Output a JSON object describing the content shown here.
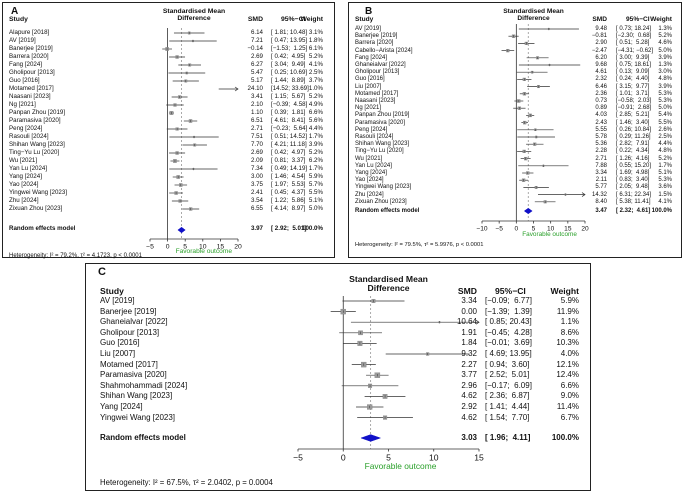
{
  "colors": {
    "favorable": "#2aa02a",
    "diamond": "#1010c8",
    "ref": "#888888",
    "line": "#333333"
  },
  "panels": [
    {
      "id": "A",
      "label": "A",
      "headers": {
        "study": "Study",
        "smd_title": "Standardised Mean\nDifference",
        "smd": "SMD",
        "ci": "95%−CI",
        "weight": "Weight"
      },
      "favorable": "Favorable outcome",
      "heterogeneity": "Heterogeneity: I² = 79.2%, τ² = 4.1723, p < 0.0001",
      "random_label": "Random effects model",
      "random": {
        "smd": "3.97",
        "ci": "[ 2.92;  5.01]",
        "weight": "100.0%"
      },
      "axis": {
        "min": -5,
        "max": 20,
        "ticks": [
          -5,
          0,
          5,
          10,
          15,
          20
        ]
      },
      "studies": [
        {
          "name": "Alapure [2018]",
          "smd": "6.14",
          "ci": "[ 1.81; 10.48]",
          "weight": "3.1%",
          "est": 6.14,
          "lo": 1.81,
          "hi": 10.48
        },
        {
          "name": "AV [2019]",
          "smd": "7.21",
          "ci": "[ 0.47; 13.95]",
          "weight": "1.8%",
          "est": 7.21,
          "lo": 0.47,
          "hi": 13.95
        },
        {
          "name": "Banerjee [2019]",
          "smd": "−0.14",
          "ci": "[−1.53;  1.25]",
          "weight": "6.1%",
          "est": -0.14,
          "lo": -1.53,
          "hi": 1.25
        },
        {
          "name": "Barrera [2020]",
          "smd": "2.69",
          "ci": "[ 0.42;  4.95]",
          "weight": "5.2%",
          "est": 2.69,
          "lo": 0.42,
          "hi": 4.95
        },
        {
          "name": "Fang [2024]",
          "smd": "6.27",
          "ci": "[ 3.04;  9.49]",
          "weight": "4.1%",
          "est": 6.27,
          "lo": 3.04,
          "hi": 9.49
        },
        {
          "name": "Gholipour [2013]",
          "smd": "5.47",
          "ci": "[ 0.25; 10.69]",
          "weight": "2.5%",
          "est": 5.47,
          "lo": 0.25,
          "hi": 10.69
        },
        {
          "name": "Guo [2016]",
          "smd": "5.17",
          "ci": "[ 1.44;  8.89]",
          "weight": "3.7%",
          "est": 5.17,
          "lo": 1.44,
          "hi": 8.89
        },
        {
          "name": "Motamed [2017]",
          "smd": "24.10",
          "ci": "[14.52; 33.69]",
          "weight": "1.0%",
          "est": 24.1,
          "lo": 14.52,
          "hi": 33.69
        },
        {
          "name": "Naasani [2023]",
          "smd": "3.41",
          "ci": "[ 1.15;  5.67]",
          "weight": "5.2%",
          "est": 3.41,
          "lo": 1.15,
          "hi": 5.67
        },
        {
          "name": "Ng [2021]",
          "smd": "2.10",
          "ci": "[−0.39;  4.58]",
          "weight": "4.9%",
          "est": 2.1,
          "lo": -0.39,
          "hi": 4.58
        },
        {
          "name": "Panpan Zhou [2019]",
          "smd": "1.10",
          "ci": "[ 0.39;  1.81]",
          "weight": "6.6%",
          "est": 1.1,
          "lo": 0.39,
          "hi": 1.81
        },
        {
          "name": "Paramasiva [2020]",
          "smd": "6.51",
          "ci": "[ 4.61;  8.41]",
          "weight": "5.6%",
          "est": 6.51,
          "lo": 4.61,
          "hi": 8.41
        },
        {
          "name": "Peng [2024]",
          "smd": "2.71",
          "ci": "[−0.23;  5.64]",
          "weight": "4.4%",
          "est": 2.71,
          "lo": -0.23,
          "hi": 5.64
        },
        {
          "name": "Rasouli [2024]",
          "smd": "7.51",
          "ci": "[ 0.51; 14.52]",
          "weight": "1.7%",
          "est": 7.51,
          "lo": 0.51,
          "hi": 14.52
        },
        {
          "name": "Shihan Wang [2023]",
          "smd": "7.70",
          "ci": "[ 4.21; 11.18]",
          "weight": "3.9%",
          "est": 7.7,
          "lo": 4.21,
          "hi": 11.18
        },
        {
          "name": "Ting−Yu Lu [2020]",
          "smd": "2.69",
          "ci": "[ 0.42;  4.97]",
          "weight": "5.2%",
          "est": 2.69,
          "lo": 0.42,
          "hi": 4.97
        },
        {
          "name": "Wu [2021]",
          "smd": "2.09",
          "ci": "[ 0.81;  3.37]",
          "weight": "6.2%",
          "est": 2.09,
          "lo": 0.81,
          "hi": 3.37
        },
        {
          "name": "Yan Lu [2024]",
          "smd": "7.34",
          "ci": "[ 0.49; 14.19]",
          "weight": "1.7%",
          "est": 7.34,
          "lo": 0.49,
          "hi": 14.19
        },
        {
          "name": "Yang [2024]",
          "smd": "3.00",
          "ci": "[ 1.46;  4.54]",
          "weight": "5.9%",
          "est": 3.0,
          "lo": 1.46,
          "hi": 4.54
        },
        {
          "name": "Yao [2024]",
          "smd": "3.75",
          "ci": "[ 1.97;  5.53]",
          "weight": "5.7%",
          "est": 3.75,
          "lo": 1.97,
          "hi": 5.53
        },
        {
          "name": "Yingwei Wang [2023]",
          "smd": "2.41",
          "ci": "[ 0.45;  4.37]",
          "weight": "5.5%",
          "est": 2.41,
          "lo": 0.45,
          "hi": 4.37
        },
        {
          "name": "Zhu [2024]",
          "smd": "3.54",
          "ci": "[ 1.22;  5.86]",
          "weight": "5.1%",
          "est": 3.54,
          "lo": 1.22,
          "hi": 5.86
        },
        {
          "name": "Zixuan Zhou [2023]",
          "smd": "6.55",
          "ci": "[ 4.14;  8.97]",
          "weight": "5.0%",
          "est": 6.55,
          "lo": 4.14,
          "hi": 8.97
        }
      ],
      "rand": {
        "est": 3.97,
        "lo": 2.92,
        "hi": 5.01
      }
    },
    {
      "id": "B",
      "label": "B",
      "headers": {
        "study": "Study",
        "smd_title": "Standardised Mean\nDifference",
        "smd": "SMD",
        "ci": "95%−CI",
        "weight": "Weight"
      },
      "favorable": "Favorable outcome",
      "heterogeneity": "Heterogeneity: I² = 79.5%, τ² = 5.9976, p < 0.0001",
      "random_label": "Random effects model",
      "random": {
        "smd": "3.47",
        "ci": "[ 2.32;  4.61]",
        "weight": "100.0%"
      },
      "axis": {
        "min": -10,
        "max": 20,
        "ticks": [
          -10,
          -5,
          0,
          5,
          10,
          15,
          20
        ]
      },
      "studies": [
        {
          "name": "AV [2019]",
          "smd": "9.48",
          "ci": "[ 0.73; 18.24]",
          "weight": "1.3%",
          "est": 9.48,
          "lo": 0.73,
          "hi": 18.24
        },
        {
          "name": "Banerjee [2019]",
          "smd": "−0.81",
          "ci": "[−2.30;  0.68]",
          "weight": "5.2%",
          "est": -0.81,
          "lo": -2.3,
          "hi": 0.68
        },
        {
          "name": "Barrera [2020]",
          "smd": "2.90",
          "ci": "[ 0.51;  5.28]",
          "weight": "4.6%",
          "est": 2.9,
          "lo": 0.51,
          "hi": 5.28
        },
        {
          "name": "Cabello−Arista [2024]",
          "smd": "−2.47",
          "ci": "[−4.31; −0.62]",
          "weight": "5.0%",
          "est": -2.47,
          "lo": -4.31,
          "hi": -0.62
        },
        {
          "name": "Fang [2024]",
          "smd": "6.20",
          "ci": "[ 3.00;  9.39]",
          "weight": "3.9%",
          "est": 6.2,
          "lo": 3.0,
          "hi": 9.39
        },
        {
          "name": "Ghaneialvar [2022]",
          "smd": "9.68",
          "ci": "[ 0.75; 18.61]",
          "weight": "1.3%",
          "est": 9.68,
          "lo": 0.75,
          "hi": 18.61
        },
        {
          "name": "Gholipour [2013]",
          "smd": "4.61",
          "ci": "[ 0.13;  9.09]",
          "weight": "3.0%",
          "est": 4.61,
          "lo": 0.13,
          "hi": 9.09
        },
        {
          "name": "Guo [2016]",
          "smd": "2.32",
          "ci": "[ 0.24;  4.40]",
          "weight": "4.8%",
          "est": 2.32,
          "lo": 0.24,
          "hi": 4.4
        },
        {
          "name": "Liu [2007]",
          "smd": "6.46",
          "ci": "[ 3.15;  9.77]",
          "weight": "3.9%",
          "est": 6.46,
          "lo": 3.15,
          "hi": 9.77
        },
        {
          "name": "Motamed [2017]",
          "smd": "2.36",
          "ci": "[ 1.01;  3.71]",
          "weight": "5.3%",
          "est": 2.36,
          "lo": 1.01,
          "hi": 3.71
        },
        {
          "name": "Naasani [2023]",
          "smd": "0.73",
          "ci": "[−0.58;  2.03]",
          "weight": "5.3%",
          "est": 0.73,
          "lo": -0.58,
          "hi": 2.03
        },
        {
          "name": "Ng [2021]",
          "smd": "0.89",
          "ci": "[−0.91;  2.68]",
          "weight": "5.0%",
          "est": 0.89,
          "lo": -0.91,
          "hi": 2.68
        },
        {
          "name": "Panpan Zhou [2019]",
          "smd": "4.03",
          "ci": "[ 2.85;  5.21]",
          "weight": "5.4%",
          "est": 4.03,
          "lo": 2.85,
          "hi": 5.21
        },
        {
          "name": "Paramasiva [2020]",
          "smd": "2.43",
          "ci": "[ 1.46;  3.40]",
          "weight": "5.5%",
          "est": 2.43,
          "lo": 1.46,
          "hi": 3.4
        },
        {
          "name": "Peng [2024]",
          "smd": "5.55",
          "ci": "[ 0.26; 10.84]",
          "weight": "2.6%",
          "est": 5.55,
          "lo": 0.26,
          "hi": 10.84
        },
        {
          "name": "Rasouli [2024]",
          "smd": "5.78",
          "ci": "[ 0.29; 11.26]",
          "weight": "2.5%",
          "est": 5.78,
          "lo": 0.29,
          "hi": 11.26
        },
        {
          "name": "Shihan Wang [2023]",
          "smd": "5.36",
          "ci": "[ 2.82;  7.91]",
          "weight": "4.4%",
          "est": 5.36,
          "lo": 2.82,
          "hi": 7.91
        },
        {
          "name": "Ting−Yu Lu [2020]",
          "smd": "2.28",
          "ci": "[ 0.22;  4.34]",
          "weight": "4.8%",
          "est": 2.28,
          "lo": 0.22,
          "hi": 4.34
        },
        {
          "name": "Wu [2021]",
          "smd": "2.71",
          "ci": "[ 1.26;  4.16]",
          "weight": "5.2%",
          "est": 2.71,
          "lo": 1.26,
          "hi": 4.16
        },
        {
          "name": "Yan Lu [2024]",
          "smd": "7.88",
          "ci": "[ 0.55; 15.20]",
          "weight": "1.7%",
          "est": 7.88,
          "lo": 0.55,
          "hi": 15.2
        },
        {
          "name": "Yang [2024]",
          "smd": "3.34",
          "ci": "[ 1.69;  4.98]",
          "weight": "5.1%",
          "est": 3.34,
          "lo": 1.69,
          "hi": 4.98
        },
        {
          "name": "Yao [2024]",
          "smd": "2.11",
          "ci": "[ 0.83;  3.40]",
          "weight": "5.3%",
          "est": 2.11,
          "lo": 0.83,
          "hi": 3.4
        },
        {
          "name": "Yingwei Wang [2023]",
          "smd": "5.77",
          "ci": "[ 2.05;  9.48]",
          "weight": "3.6%",
          "est": 5.77,
          "lo": 2.05,
          "hi": 9.48
        },
        {
          "name": "Zhu [2024]",
          "smd": "14.32",
          "ci": "[ 6.31; 22.34]",
          "weight": "1.5%",
          "est": 14.32,
          "lo": 6.31,
          "hi": 22.34
        },
        {
          "name": "Zixuan Zhou [2023]",
          "smd": "8.40",
          "ci": "[ 5.38; 11.41]",
          "weight": "4.1%",
          "est": 8.4,
          "lo": 5.38,
          "hi": 11.41
        }
      ],
      "rand": {
        "est": 3.47,
        "lo": 2.32,
        "hi": 4.61
      }
    },
    {
      "id": "C",
      "label": "C",
      "headers": {
        "study": "Study",
        "smd_title": "Standardised Mean\nDifference",
        "smd": "SMD",
        "ci": "95%−CI",
        "weight": "Weight"
      },
      "favorable": "Favorable outcome",
      "heterogeneity": "Heterogeneity: I² = 67.5%, τ² = 2.0402, p = 0.0004",
      "random_label": "Random effects model",
      "random": {
        "smd": "3.03",
        "ci": "[ 1.96;  4.11]",
        "weight": "100.0%"
      },
      "axis": {
        "min": -5,
        "max": 15,
        "ticks": [
          -5,
          0,
          5,
          10,
          15
        ]
      },
      "studies": [
        {
          "name": "AV [2019]",
          "smd": "3.34",
          "ci": "[−0.09;  6.77]",
          "weight": "5.9%",
          "est": 3.34,
          "lo": -0.09,
          "hi": 6.77
        },
        {
          "name": "Banerjee [2019]",
          "smd": "0.00",
          "ci": "[−1.39;  1.39]",
          "weight": "11.9%",
          "est": 0.0,
          "lo": -1.39,
          "hi": 1.39
        },
        {
          "name": "Ghaneialvar [2022]",
          "smd": "10.64",
          "ci": "[ 0.85; 20.43]",
          "weight": "1.1%",
          "est": 10.64,
          "lo": 0.85,
          "hi": 20.43
        },
        {
          "name": "Gholipour [2013]",
          "smd": "1.91",
          "ci": "[−0.45;  4.28]",
          "weight": "8.6%",
          "est": 1.91,
          "lo": -0.45,
          "hi": 4.28
        },
        {
          "name": "Guo [2016]",
          "smd": "1.84",
          "ci": "[−0.01;  3.69]",
          "weight": "10.3%",
          "est": 1.84,
          "lo": -0.01,
          "hi": 3.69
        },
        {
          "name": "Liu [2007]",
          "smd": "9.32",
          "ci": "[ 4.69; 13.95]",
          "weight": "4.0%",
          "est": 9.32,
          "lo": 4.69,
          "hi": 13.95
        },
        {
          "name": "Motamed [2017]",
          "smd": "2.27",
          "ci": "[ 0.94;  3.60]",
          "weight": "12.1%",
          "est": 2.27,
          "lo": 0.94,
          "hi": 3.6
        },
        {
          "name": "Paramasiva [2020]",
          "smd": "3.77",
          "ci": "[ 2.52;  5.01]",
          "weight": "12.4%",
          "est": 3.77,
          "lo": 2.52,
          "hi": 5.01
        },
        {
          "name": "Shahmohammadi [2024]",
          "smd": "2.96",
          "ci": "[−0.17;  6.09]",
          "weight": "6.6%",
          "est": 2.96,
          "lo": -0.17,
          "hi": 6.09
        },
        {
          "name": "Shihan Wang [2023]",
          "smd": "4.62",
          "ci": "[ 2.36;  6.87]",
          "weight": "9.0%",
          "est": 4.62,
          "lo": 2.36,
          "hi": 6.87
        },
        {
          "name": "Yang [2024]",
          "smd": "2.92",
          "ci": "[ 1.41;  4.44]",
          "weight": "11.4%",
          "est": 2.92,
          "lo": 1.41,
          "hi": 4.44
        },
        {
          "name": "Yingwei Wang [2023]",
          "smd": "4.62",
          "ci": "[ 1.54;  7.70]",
          "weight": "6.7%",
          "est": 4.62,
          "lo": 1.54,
          "hi": 7.7
        }
      ],
      "rand": {
        "est": 3.03,
        "lo": 1.96,
        "hi": 4.11
      }
    }
  ]
}
